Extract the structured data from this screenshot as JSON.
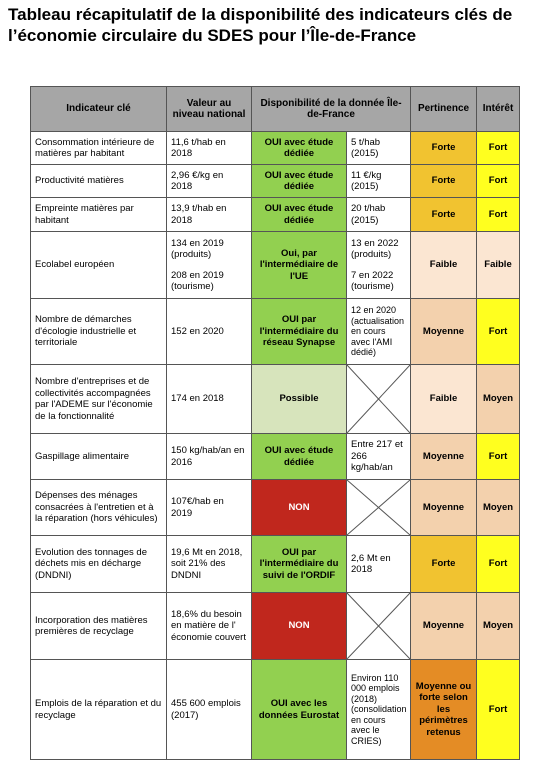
{
  "title": "Tableau récapitulatif de la disponibilité des indicateurs clés de l’économie circulaire du SDES pour l’Île-de-France",
  "headers": {
    "indicateur": "Indicateur clé",
    "valeur": "Valeur au niveau national",
    "dispo": "Disponibilité de la donnée Île-de-France",
    "pertinence": "Pertinence",
    "interet": "Intérêt"
  },
  "rows": [
    {
      "ind": "Consommation intérieure de matières par habitant",
      "val": "11,6 t/hab en 2018",
      "dispo": "OUI avec étude dédiée",
      "idf": "5 t/hab (2015)",
      "per": "Forte",
      "int": "Fort"
    },
    {
      "ind": "Productivité matières",
      "val": "2,96 €/kg en 2018",
      "dispo": "OUI avec étude dédiée",
      "idf": "11 €/kg (2015)",
      "per": "Forte",
      "int": "Fort"
    },
    {
      "ind": "Empreinte matières par habitant",
      "val": "13,9 t/hab en 2018",
      "dispo": "OUI avec étude dédiée",
      "idf": "20 t/hab (2015)",
      "per": "Forte",
      "int": "Fort"
    },
    {
      "ind": "Ecolabel européen",
      "val": "134 en 2019 (produits)",
      "val2": "208 en 2019 (tourisme)",
      "dispo": "Oui, par l'intermédiaire de l'UE",
      "idf": "13 en 2022 (produits)",
      "idf2": "7 en 2022 (tourisme)",
      "per": "Faible",
      "int": "Faible"
    },
    {
      "ind": "Nombre de démarches d'écologie industrielle et territoriale",
      "val": "152 en 2020",
      "dispo": "OUI par l'intermédiaire du réseau Synapse",
      "idf": "12 en 2020 (actualisation en cours avec l'AMI dédié)",
      "per": "Moyenne",
      "int": "Fort"
    },
    {
      "ind": "Nombre d'entreprises et de collectivités accompagnées par l'ADEME sur l'économie de la fonctionnalité",
      "val": "174 en 2018",
      "dispo": "Possible",
      "idf": "",
      "per": "Faible",
      "int": "Moyen"
    },
    {
      "ind": "Gaspillage alimentaire",
      "val": "150 kg/hab/an en 2016",
      "dispo": "OUI avec étude dédiée",
      "idf": "Entre 217 et 266 kg/hab/an",
      "per": "Moyenne",
      "int": "Fort"
    },
    {
      "ind": "Dépenses des ménages consacrées à l'entretien et à la réparation (hors véhicules)",
      "val": "107€/hab en 2019",
      "dispo": "NON",
      "idf": "",
      "per": "Moyenne",
      "int": "Moyen"
    },
    {
      "ind": "Evolution des tonnages de déchets mis en décharge (DNDNI)",
      "val": "19,6 Mt en 2018, soit 21% des DNDNI",
      "dispo": "OUI par l'intermédiaire du suivi de l'ORDIF",
      "idf": "2,6 Mt en 2018",
      "per": "Forte",
      "int": "Fort"
    },
    {
      "ind": "Incorporation des matières premières de recyclage",
      "val": "18,6% du besoin en matière de l' économie couvert",
      "dispo": "NON",
      "idf": "",
      "per": "Moyenne",
      "int": "Moyen"
    },
    {
      "ind": "Emplois de la réparation et du recyclage",
      "val": "455 600 emplois (2017)",
      "dispo": "OUI avec les données Eurostat",
      "idf": "Environ 110 000 emplois (2018) (consolidation en cours avec le CRIES)",
      "per": "Moyenne ou forte selon les périmètres retenus",
      "int": "Fort"
    }
  ]
}
